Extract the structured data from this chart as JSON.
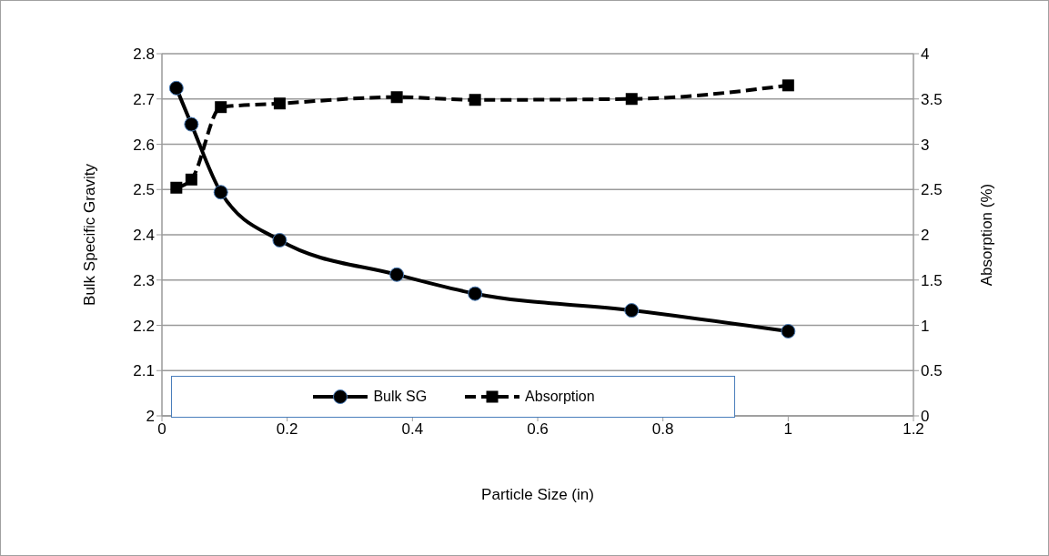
{
  "chart_data": {
    "type": "line",
    "xlabel": "Particle Size (in)",
    "ylabel": "Bulk Specific Gravity",
    "y2label": "Absorption (%)",
    "x": [
      0.023,
      0.047,
      0.094,
      0.188,
      0.375,
      0.5,
      0.75,
      1
    ],
    "series": [
      {
        "name": "Bulk SG",
        "color": "#000000",
        "values": [
          2.724,
          2.644,
          2.494,
          2.388,
          2.312,
          2.27,
          2.233,
          2.187
        ],
        "marker": "circle",
        "line_style": "solid"
      },
      {
        "name": "Absorption",
        "color": "#000000",
        "axis": "y2",
        "values": [
          2.52,
          2.61,
          3.41,
          3.45,
          3.52,
          3.49,
          3.5,
          3.65
        ],
        "marker": "square",
        "line_style": "dashed"
      }
    ],
    "xlim": [
      0,
      1.2
    ],
    "xticks": [
      0,
      0.2,
      0.4,
      0.6,
      0.8,
      1,
      1.2
    ],
    "ylim": [
      2,
      2.8
    ],
    "yticks": [
      2,
      2.1,
      2.2,
      2.3,
      2.4,
      2.5,
      2.6,
      2.7,
      2.8
    ],
    "y2lim": [
      0,
      4
    ],
    "y2ticks": [
      0,
      0.5,
      1,
      1.5,
      2,
      2.5,
      3,
      3.5,
      4
    ],
    "grid": "y",
    "legend": "bottom"
  }
}
